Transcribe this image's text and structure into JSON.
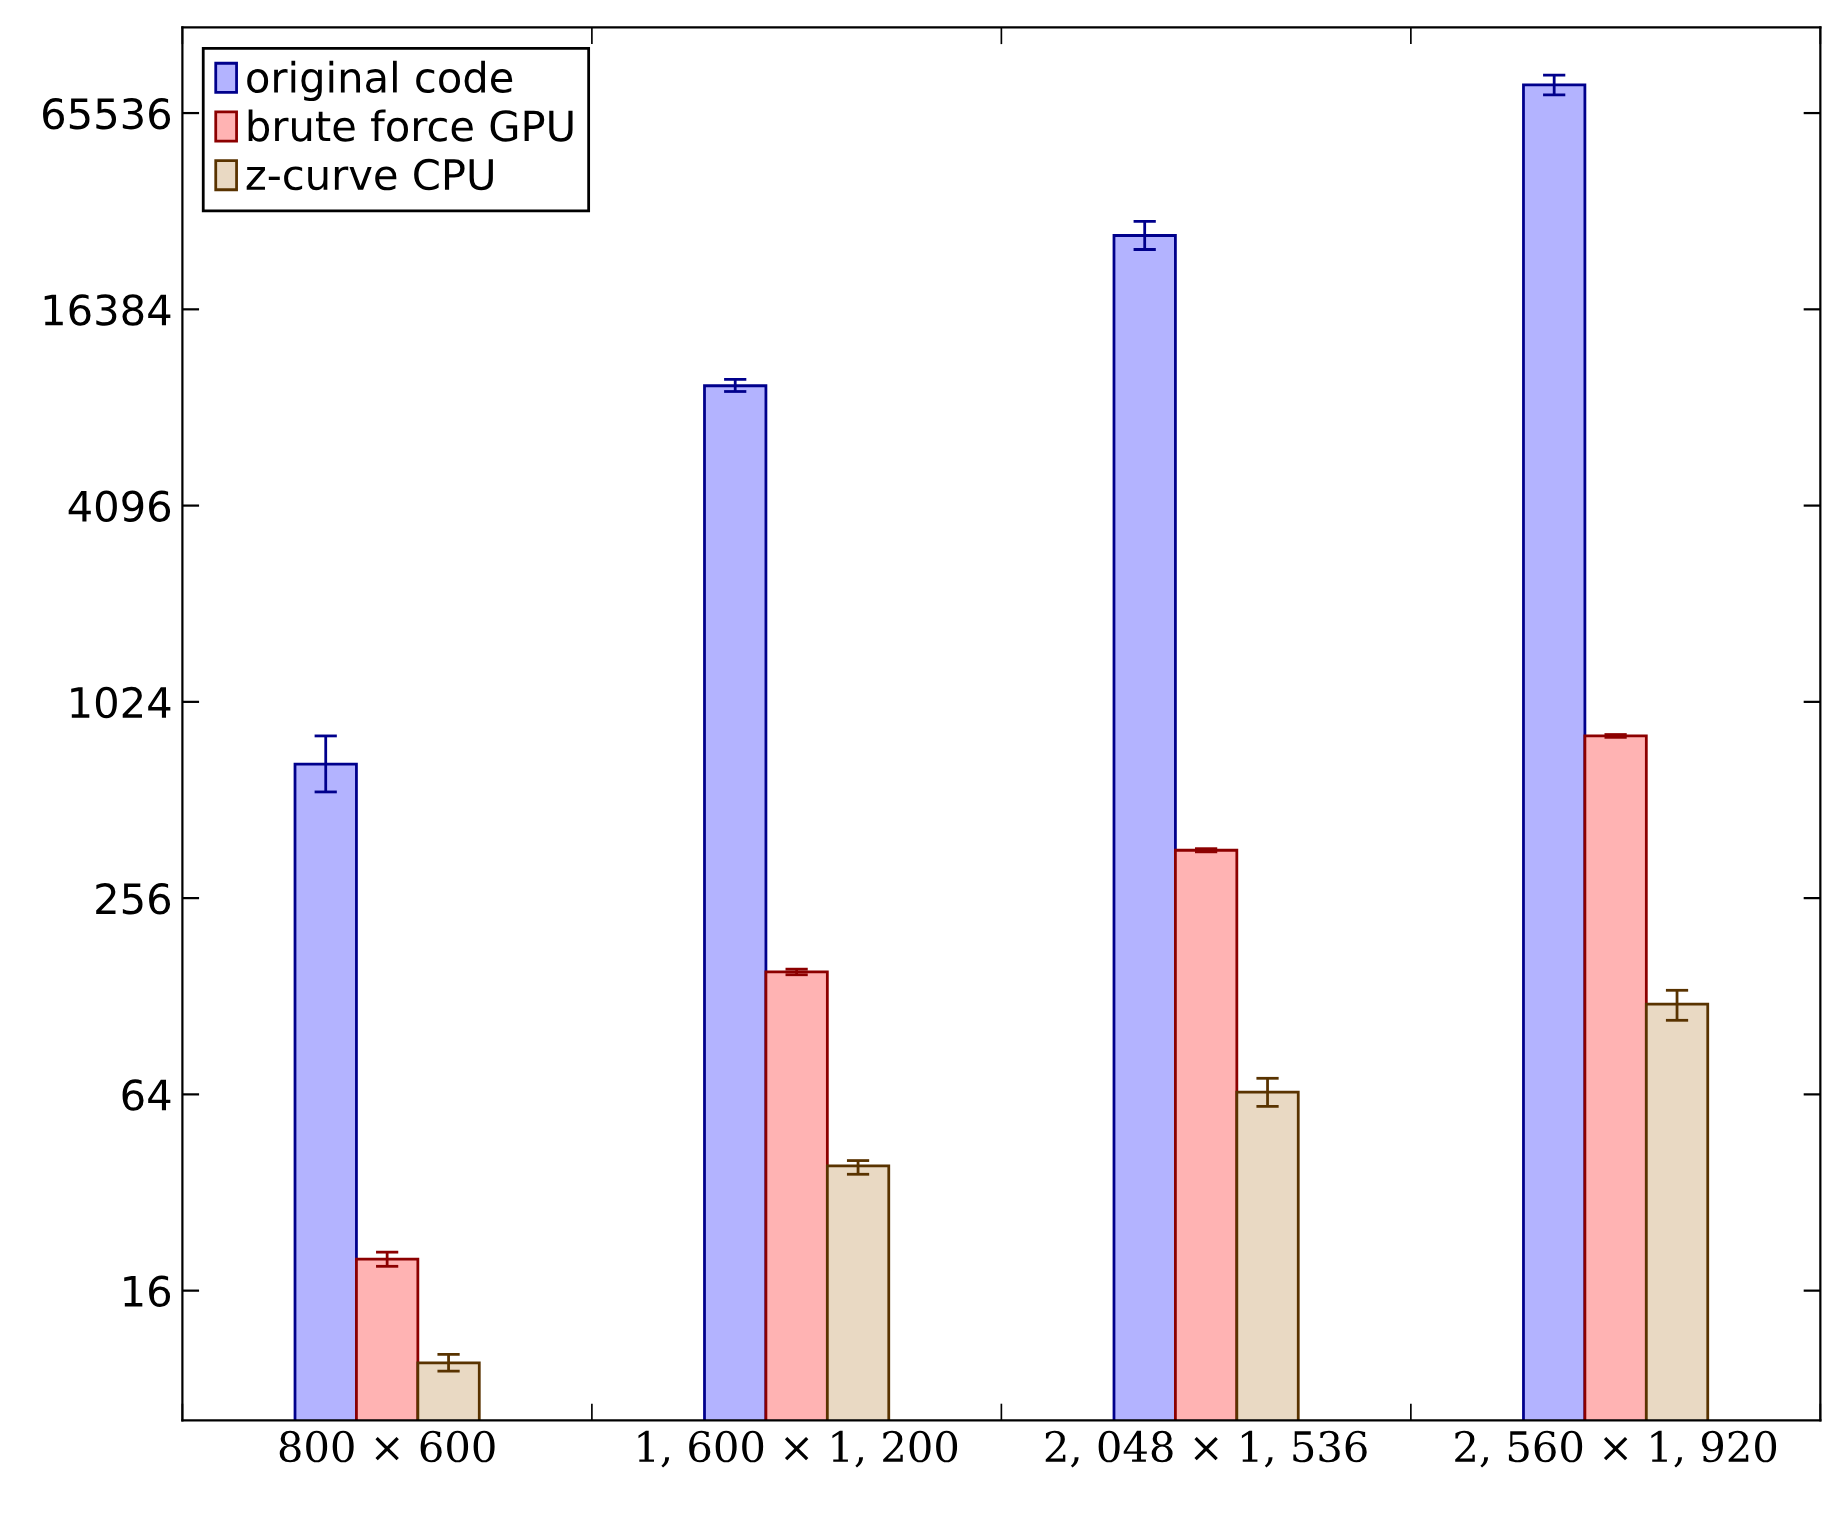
{
  "chart_data": {
    "type": "bar",
    "categories": [
      "800 × 600",
      "1, 600 × 1, 200",
      "2, 048 × 1, 536",
      "2, 560 × 1, 920"
    ],
    "series": [
      {
        "name": "original code",
        "color": "#b3b3ff",
        "values": [
          660,
          9550,
          27600,
          80000
        ],
        "errors": [
          [
            542,
            805
          ],
          [
            9170,
            9990
          ],
          [
            25000,
            30500
          ],
          [
            74500,
            85700
          ]
        ]
      },
      {
        "name": "brute force GPU",
        "color": "#ffb3b3",
        "values": [
          20,
          152,
          359,
          805
        ],
        "errors": [
          1,
          3,
          4,
          8
        ]
      },
      {
        "name": "z-curve CPU",
        "color": "#e9d9c3",
        "values": [
          9.6,
          38.6,
          65,
          121
        ],
        "errors": [
          [
            9.06,
            10.2
          ],
          [
            36.4,
            40.1
          ],
          [
            58.8,
            71.7
          ],
          [
            108,
            133.5
          ]
        ]
      }
    ],
    "log": "y",
    "ylim": [
      6.4,
      120000
    ],
    "yticks": [
      16,
      64,
      256,
      1024,
      4096,
      16384,
      65536
    ],
    "legend": "top left",
    "grid": false
  }
}
